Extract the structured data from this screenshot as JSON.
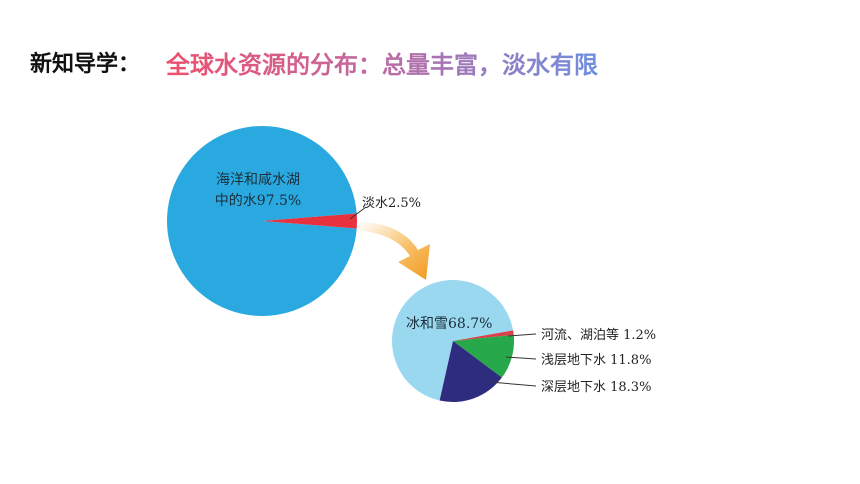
{
  "slide": {
    "label": "新知导学：",
    "title": "全球水资源的分布：总量丰富，淡水有限"
  },
  "colors": {
    "ocean": "#2aa9e0",
    "freshwater_slice": "#e8313f",
    "ice": "#9ad8ef",
    "rivers": "#d94048",
    "shallow": "#27a84a",
    "deep": "#2e2c7e",
    "arrow": "#f4a636"
  },
  "chart_data": [
    {
      "type": "pie",
      "title": "",
      "slices": [
        {
          "label": "海洋和咸水湖中的水",
          "value": 97.5,
          "text_lines": [
            "海洋和咸水湖",
            "中的水97.5%"
          ]
        },
        {
          "label": "淡水",
          "value": 2.5,
          "text": "淡水2.5%"
        }
      ]
    },
    {
      "type": "pie",
      "title": "",
      "slices": [
        {
          "label": "冰和雪",
          "value": 68.7,
          "text": "冰和雪68.7%"
        },
        {
          "label": "河流、湖泊等",
          "value": 1.2,
          "text": "河流、湖泊等 1.2%"
        },
        {
          "label": "浅层地下水",
          "value": 11.8,
          "text": "浅层地下水 11.8%"
        },
        {
          "label": "深层地下水",
          "value": 18.3,
          "text": "深层地下水 18.3%"
        }
      ]
    }
  ]
}
